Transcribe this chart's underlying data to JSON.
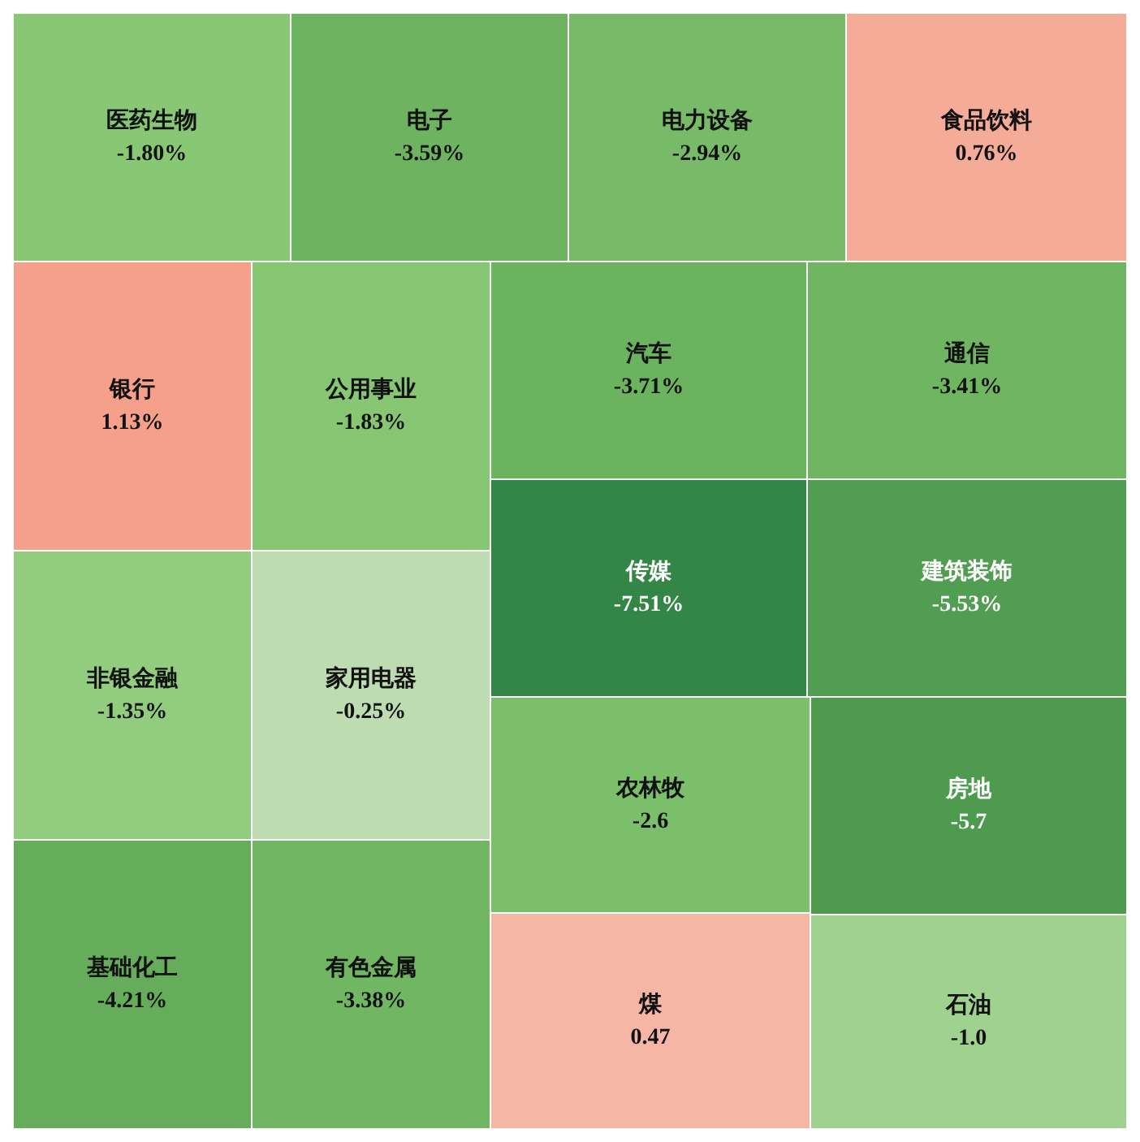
{
  "chart_data": {
    "type": "other",
    "categories": [
      "医药生物",
      "电子",
      "电力设备",
      "食品饮料",
      "银行",
      "非银金融",
      "基础化工",
      "公用事业",
      "家用电器",
      "有色金属",
      "汽车",
      "通信",
      "传媒",
      "建筑装饰",
      "农林牧",
      "煤",
      "房地",
      "石油"
    ],
    "values": [
      -1.8,
      -3.59,
      -2.94,
      0.76,
      1.13,
      -1.35,
      -4.21,
      -1.83,
      -0.25,
      -3.38,
      -3.71,
      -3.41,
      -7.51,
      -5.53,
      -2.6,
      0.47,
      -5.7,
      -1.0
    ],
    "value_labels": [
      "-1.80%",
      "-3.59%",
      "-2.94%",
      "0.76%",
      "1.13%",
      "-1.35%",
      "-4.21%",
      "-1.83%",
      "-0.25%",
      "-3.38%",
      "-3.71%",
      "-3.41%",
      "-7.51%",
      "-5.53%",
      "-2.6",
      "0.47",
      "-5.7",
      "-1.0"
    ]
  }
}
